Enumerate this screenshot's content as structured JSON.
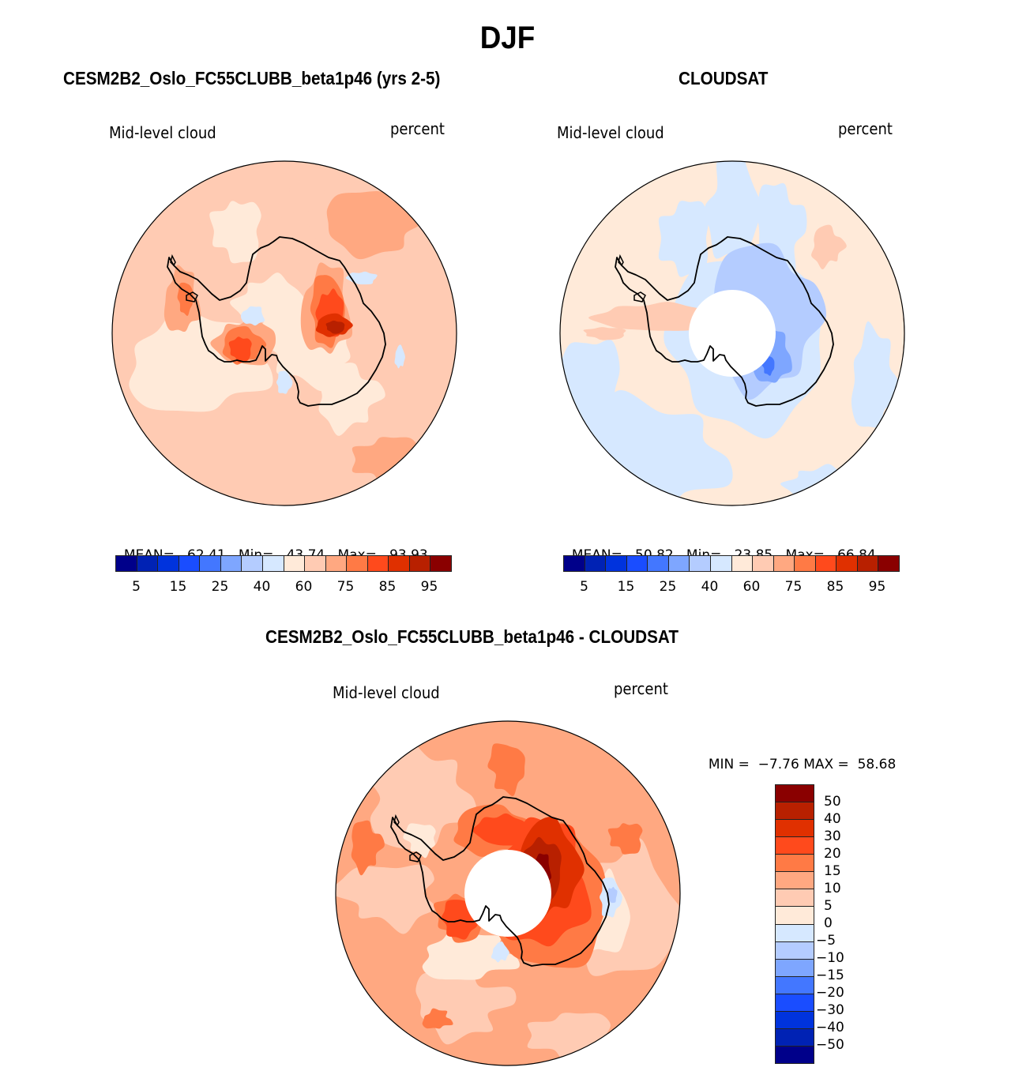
{
  "figure": {
    "title": "DJF"
  },
  "palette": [
    "#00008a",
    "#0022b4",
    "#0033dd",
    "#1a4dff",
    "#4377ff",
    "#7ea6ff",
    "#b4ccff",
    "#d6e8ff",
    "#ffead9",
    "#ffcbb3",
    "#ffa881",
    "#ff7a45",
    "#ff4a1c",
    "#e03000",
    "#b82000",
    "#8a0000"
  ],
  "chart_data": [
    {
      "type": "heatmap",
      "projection": "south-polar-stereographic",
      "title": "CESM2B2_Oslo_FC55CLUBB_beta1p46 (yrs 2-5)",
      "variable": "Mid-level cloud",
      "units": "percent",
      "stats": {
        "mean_label": "MEAN=",
        "mean": "62.41",
        "min_label": "Min=",
        "min": "43.74",
        "max_label": "Max=",
        "max": "93.93"
      },
      "colorbar": {
        "orientation": "horizontal",
        "levels": [
          5,
          10,
          15,
          20,
          25,
          30,
          40,
          50,
          60,
          70,
          75,
          80,
          85,
          90,
          95
        ],
        "tick_labels": [
          "5",
          "15",
          "25",
          "40",
          "60",
          "75",
          "85",
          "95"
        ]
      },
      "dominant_range": "55-75",
      "features": [
        {
          "region": "East Antarctic interior",
          "level_range": "85-95"
        },
        {
          "region": "West Antarctica / Ross-Weddell interior",
          "level_range": "75-85"
        },
        {
          "region": "Antarctic Peninsula",
          "level_range": "70-80"
        },
        {
          "region": "small patches over ice sheet",
          "level_range": "40-50"
        }
      ]
    },
    {
      "type": "heatmap",
      "projection": "south-polar-stereographic",
      "title": "CLOUDSAT",
      "variable": "Mid-level cloud",
      "units": "percent",
      "stats": {
        "mean_label": "MEAN=",
        "mean": "50.82",
        "min_label": "Min=",
        "min": "23.85",
        "max_label": "Max=",
        "max": "66.84"
      },
      "colorbar": {
        "orientation": "horizontal",
        "levels": [
          5,
          10,
          15,
          20,
          25,
          30,
          40,
          50,
          60,
          70,
          75,
          80,
          85,
          90,
          95
        ],
        "tick_labels": [
          "5",
          "15",
          "25",
          "40",
          "60",
          "75",
          "85",
          "95"
        ]
      },
      "missing_region": "polar cap (no data south of ~82S)",
      "dominant_range": "40-60",
      "features": [
        {
          "region": "East Antarctic interior",
          "level_range": "25-40"
        },
        {
          "region": "Antarctic Peninsula / Bellingshausen",
          "level_range": "60-70"
        }
      ]
    },
    {
      "type": "heatmap",
      "projection": "south-polar-stereographic",
      "title": "CESM2B2_Oslo_FC55CLUBB_beta1p46 - CLOUDSAT",
      "variable": "Mid-level cloud",
      "units": "percent",
      "stats": {
        "min_label": "MIN =",
        "min": "−7.76",
        "max_label": "MAX =",
        "max": "58.68"
      },
      "colorbar": {
        "orientation": "vertical",
        "levels": [
          -50,
          -40,
          -30,
          -20,
          -15,
          -10,
          -5,
          0,
          5,
          10,
          15,
          20,
          30,
          40,
          50
        ],
        "tick_labels": [
          "50",
          "40",
          "30",
          "20",
          "15",
          "10",
          "5",
          "0",
          "−5",
          "−10",
          "−15",
          "−20",
          "−30",
          "−40",
          "−50"
        ]
      },
      "missing_region": "polar cap (no data south of ~82S)",
      "dominant_range": "5-20",
      "features": [
        {
          "region": "East Antarctic interior",
          "level_range": "40-50+"
        },
        {
          "region": "West Antarctic interior",
          "level_range": "20-30"
        },
        {
          "region": "East Antarctic coast (~90E)",
          "level_range": "-10 to 0"
        }
      ]
    }
  ]
}
